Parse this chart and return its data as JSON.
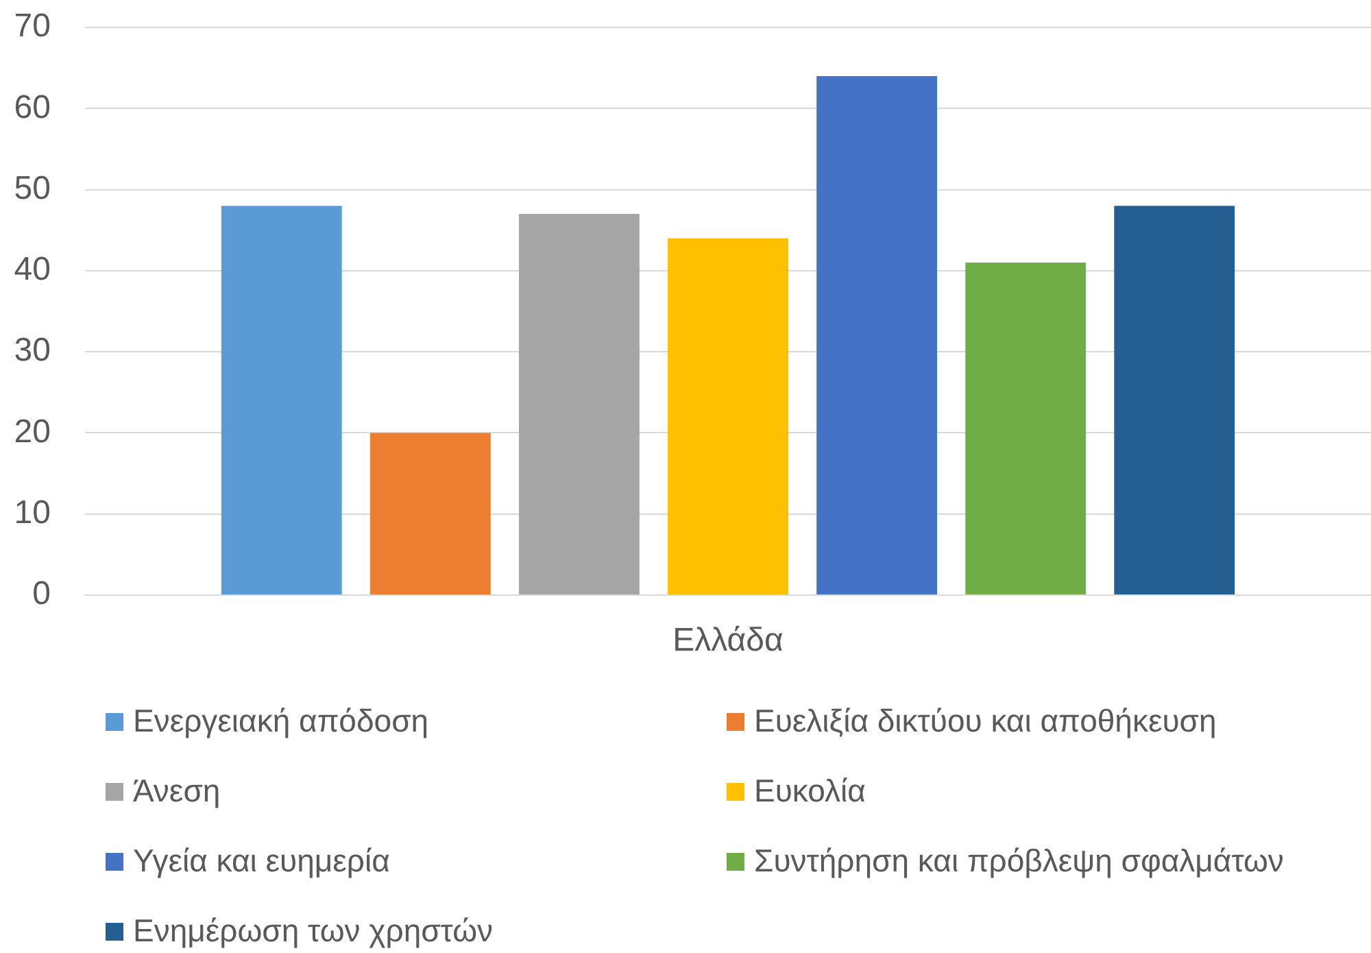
{
  "chart_data": {
    "type": "bar",
    "categories": [
      "Ελλάδα"
    ],
    "series": [
      {
        "name": "Ενεργειακή απόδοση",
        "color": "#5b9bd5",
        "values": [
          48
        ]
      },
      {
        "name": "Ευελιξία δικτύου και αποθήκευση",
        "color": "#ed7d31",
        "values": [
          20
        ]
      },
      {
        "name": "Άνεση",
        "color": "#a5a5a5",
        "values": [
          47
        ]
      },
      {
        "name": "Ευκολία",
        "color": "#ffc000",
        "values": [
          44
        ]
      },
      {
        "name": "Υγεία και ευημερία",
        "color": "#4472c4",
        "values": [
          64
        ]
      },
      {
        "name": "Συντήρηση και πρόβλεψη σφαλμάτων",
        "color": "#70ad47",
        "values": [
          41
        ]
      },
      {
        "name": "Ενημέρωση των χρηστών",
        "color": "#255e91",
        "values": [
          48
        ]
      }
    ],
    "ylim": [
      0,
      70
    ],
    "yticks": [
      0,
      10,
      20,
      30,
      40,
      50,
      60,
      70
    ],
    "grid": "y",
    "legend": "bottom"
  }
}
